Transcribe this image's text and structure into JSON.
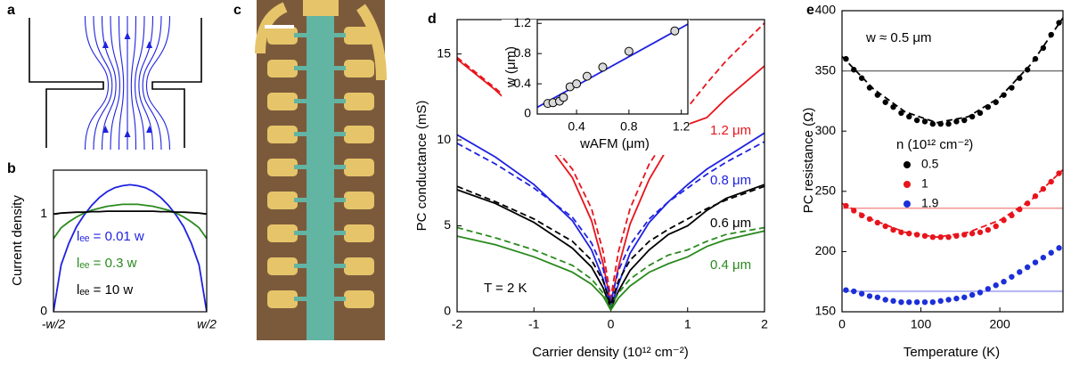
{
  "diagram": {
    "panel": "a"
  },
  "photo": {
    "panel": "c"
  },
  "chart_data": [
    {
      "type": "line",
      "panel": "b",
      "ylabel": "Current density",
      "x": [
        -0.5,
        -0.45,
        -0.4,
        -0.35,
        -0.3,
        -0.25,
        -0.2,
        -0.15,
        -0.1,
        -0.05,
        0,
        0.05,
        0.1,
        0.15,
        0.2,
        0.25,
        0.3,
        0.35,
        0.4,
        0.45,
        0.5
      ],
      "xlim": [
        -0.5,
        0.5
      ],
      "xticks": [
        {
          "value": -0.5,
          "label": "-w/2"
        },
        {
          "value": 0.5,
          "label": "w/2"
        }
      ],
      "ylim": [
        0,
        1.45
      ],
      "yticks": [
        0,
        1
      ],
      "series": [
        {
          "name": "lₑₑ = 0.01 w",
          "color": "#1f22e0",
          "style": "solid",
          "values": [
            0,
            0.48,
            0.7,
            0.87,
            0.99,
            1.09,
            1.17,
            1.23,
            1.27,
            1.29,
            1.3,
            1.29,
            1.27,
            1.23,
            1.17,
            1.09,
            0.99,
            0.87,
            0.7,
            0.48,
            0
          ]
        },
        {
          "name": "lₑₑ = 0.3 w",
          "color": "#2a8a1e",
          "style": "solid",
          "values": [
            0.75,
            0.86,
            0.92,
            0.97,
            1.01,
            1.04,
            1.06,
            1.08,
            1.09,
            1.1,
            1.1,
            1.1,
            1.09,
            1.08,
            1.06,
            1.04,
            1.01,
            0.97,
            0.92,
            0.86,
            0.75
          ]
        },
        {
          "name": "lₑₑ = 10 w",
          "color": "#000000",
          "style": "solid",
          "values": [
            1.0,
            1.01,
            1.015,
            1.02,
            1.02,
            1.025,
            1.025,
            1.03,
            1.03,
            1.03,
            1.03,
            1.03,
            1.03,
            1.03,
            1.025,
            1.025,
            1.02,
            1.02,
            1.015,
            1.01,
            1.0
          ]
        }
      ]
    },
    {
      "type": "line",
      "panel": "d",
      "xlabel": "Carrier density (10¹² cm⁻²)",
      "ylabel": "PC conductance (mS)",
      "annotations": [
        "T = 2 K"
      ],
      "x": [
        -2,
        -1.5,
        -1,
        -0.5,
        -0.25,
        -0.1,
        0,
        0.1,
        0.25,
        0.5,
        0.75,
        1,
        1.25,
        1.5,
        2
      ],
      "xlim": [
        -2,
        2
      ],
      "xticks": [
        -2,
        -1,
        0,
        1,
        2
      ],
      "ylim": [
        0,
        17
      ],
      "yticks": [
        0,
        5,
        10,
        15
      ],
      "series": [
        {
          "name": "1.2 μm",
          "color": "#e8141c",
          "style": "solid",
          "values": [
            14.7,
            12.9,
            10.8,
            7.8,
            5.3,
            2.8,
            0.5,
            2.6,
            5.1,
            7.7,
            9.6,
            10.9,
            11.3,
            12.4,
            14.3
          ]
        },
        {
          "color": "#e8141c",
          "style": "dashed",
          "values": [
            14.8,
            13.0,
            11.0,
            8.3,
            6.0,
            3.5,
            0.8,
            3.5,
            6.0,
            8.6,
            10.3,
            11.9,
            13.3,
            14.6,
            16.8
          ]
        },
        {
          "name": "0.8 μm",
          "color": "#1f22e0",
          "style": "solid",
          "values": [
            10.3,
            9.0,
            7.4,
            5.3,
            3.6,
            1.9,
            0.3,
            1.6,
            3.4,
            5.2,
            6.4,
            7.4,
            8.3,
            9.0,
            10.4
          ]
        },
        {
          "color": "#1f22e0",
          "style": "dashed",
          "values": [
            9.8,
            8.6,
            7.2,
            5.5,
            4.0,
            2.5,
            0.6,
            2.4,
            3.9,
            5.4,
            6.4,
            7.2,
            8.0,
            8.7,
            9.9
          ]
        },
        {
          "name": "0.6 μm",
          "color": "#000000",
          "style": "solid",
          "values": [
            7.1,
            6.3,
            5.2,
            3.7,
            2.6,
            1.4,
            0.2,
            1.2,
            2.4,
            3.6,
            4.5,
            5.0,
            5.9,
            6.6,
            7.4
          ]
        },
        {
          "color": "#000000",
          "style": "dashed",
          "values": [
            7.3,
            6.4,
            5.4,
            4.1,
            3.0,
            1.8,
            0.4,
            1.8,
            3.0,
            4.1,
            4.8,
            5.4,
            6.0,
            6.5,
            7.3
          ]
        },
        {
          "name": "0.4 μm",
          "color": "#2a8a1e",
          "style": "solid",
          "values": [
            4.4,
            3.9,
            3.2,
            2.3,
            1.6,
            0.9,
            0.1,
            0.8,
            1.5,
            2.3,
            2.8,
            3.2,
            3.8,
            4.2,
            4.7
          ]
        },
        {
          "color": "#2a8a1e",
          "style": "dashed",
          "values": [
            4.9,
            4.3,
            3.6,
            2.7,
            1.9,
            1.1,
            0.3,
            1.1,
            1.9,
            2.7,
            3.3,
            3.6,
            4.1,
            4.5,
            4.9
          ]
        }
      ]
    },
    {
      "type": "scatter",
      "xlabel": "wAFM (μm)",
      "ylabel": "w (μm)",
      "xlim": [
        0.1,
        1.25
      ],
      "xticks": [
        0.4,
        0.8,
        1.2
      ],
      "ylim": [
        0,
        1.25
      ],
      "yticks": [
        0,
        0.4,
        0.8,
        1.2
      ],
      "series": [
        {
          "color": "#1f22e0",
          "style": "solid",
          "x": [
            0.1,
            1.25
          ],
          "values": [
            0.09,
            1.19
          ]
        },
        {
          "color": "#d9d9d9",
          "style": "open-dots",
          "x": [
            0.18,
            0.22,
            0.27,
            0.3,
            0.35,
            0.4,
            0.48,
            0.6,
            0.8,
            1.15
          ],
          "values": [
            0.14,
            0.15,
            0.17,
            0.22,
            0.36,
            0.4,
            0.5,
            0.62,
            0.83,
            1.1
          ]
        }
      ]
    },
    {
      "type": "scatter",
      "panel": "e",
      "xlabel": "Temperature (K)",
      "ylabel": "PC resistance (Ω)",
      "annotations": [
        "w ≈ 0.5 μm"
      ],
      "legend_title": "n (10¹² cm⁻²)",
      "xlim": [
        0,
        280
      ],
      "xticks": [
        0,
        100,
        200
      ],
      "ylim": [
        150,
        400
      ],
      "yticks": [
        150,
        200,
        250,
        300,
        350,
        400
      ],
      "hlines": [
        {
          "value": 350,
          "color": "#666666"
        },
        {
          "value": 236,
          "color": "#f08080"
        },
        {
          "value": 167,
          "color": "#8c8cf0"
        }
      ],
      "series": [
        {
          "name": "0.5",
          "color": "#000000",
          "style": "dots",
          "x": [
            5,
            15,
            25,
            35,
            45,
            55,
            65,
            75,
            85,
            95,
            105,
            115,
            125,
            135,
            145,
            155,
            165,
            175,
            185,
            195,
            205,
            215,
            225,
            235,
            245,
            255,
            265,
            275
          ],
          "values": [
            360,
            351,
            344,
            336,
            330,
            324,
            320,
            315,
            312,
            309,
            308,
            306,
            306,
            306,
            308,
            309,
            312,
            315,
            320,
            324,
            330,
            336,
            344,
            351,
            360,
            369,
            380,
            390
          ]
        },
        {
          "name": "1",
          "color": "#e8141c",
          "style": "dots",
          "x": [
            5,
            15,
            25,
            35,
            45,
            55,
            65,
            75,
            85,
            95,
            105,
            115,
            125,
            135,
            145,
            155,
            165,
            175,
            185,
            195,
            205,
            215,
            225,
            235,
            245,
            255,
            265,
            275
          ],
          "values": [
            238,
            234,
            230,
            227,
            224,
            221,
            218,
            216,
            215,
            214,
            213,
            212,
            212,
            212,
            213,
            214,
            215,
            216,
            218,
            221,
            226,
            230,
            235,
            240,
            246,
            252,
            258,
            265
          ]
        },
        {
          "name": "1.9",
          "color": "#1c2fd8",
          "style": "dots",
          "x": [
            5,
            15,
            25,
            35,
            45,
            55,
            65,
            75,
            85,
            95,
            105,
            115,
            125,
            135,
            145,
            155,
            165,
            175,
            185,
            195,
            205,
            215,
            225,
            235,
            245,
            255,
            265,
            275
          ],
          "values": [
            168,
            167,
            165,
            163,
            162,
            160,
            159,
            158,
            158,
            158,
            158,
            158,
            159,
            160,
            161,
            162,
            164,
            166,
            169,
            172,
            175,
            179,
            183,
            187,
            191,
            195,
            199,
            203
          ]
        },
        {
          "color": "#000000",
          "style": "dashed",
          "x": [
            0,
            40,
            80,
            120,
            160,
            200,
            240,
            280
          ],
          "values": [
            362,
            335,
            316,
            307,
            312,
            328,
            356,
            394
          ]
        },
        {
          "color": "#e8141c",
          "style": "dashed",
          "x": [
            0,
            40,
            80,
            120,
            160,
            200,
            240,
            280
          ],
          "values": [
            240,
            226,
            216,
            212,
            216,
            226,
            243,
            268
          ]
        }
      ]
    }
  ]
}
